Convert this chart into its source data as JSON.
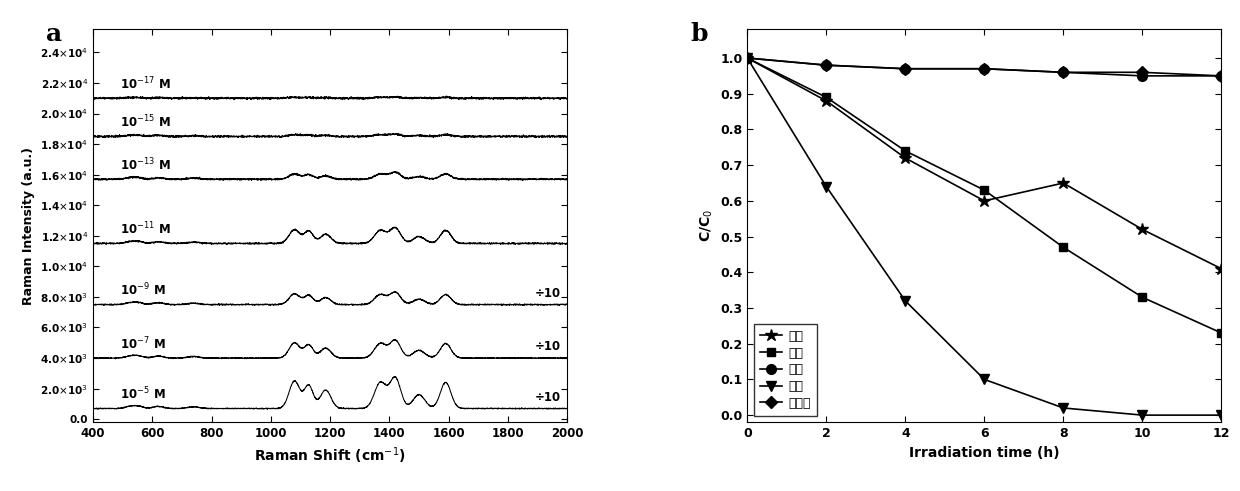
{
  "panel_a": {
    "xlabel": "Raman Shift (cm$^{-1}$)",
    "ylabel": "Raman Intensity (a.u.)",
    "xlim": [
      400,
      2000
    ],
    "ylim": [
      -200,
      25500
    ],
    "yticks": [
      0,
      2000,
      4000,
      6000,
      8000,
      10000,
      12000,
      14000,
      16000,
      18000,
      20000,
      22000,
      24000
    ],
    "ytick_labels": [
      "0.0",
      "2.0×10³",
      "4.0×10³",
      "6.0×10³",
      "8.0×10³",
      "1.0×10⁴",
      "1.2×10⁴",
      "1.4×10⁴",
      "1.6×10⁴",
      "1.8×10⁴",
      "2.0×10⁴",
      "2.2×10⁴",
      "2.4×10⁴"
    ],
    "xticks": [
      400,
      600,
      800,
      1000,
      1200,
      1400,
      1600,
      1800,
      2000
    ],
    "concentrations": [
      "10$^{-17}$ M",
      "10$^{-15}$ M",
      "10$^{-13}$ M",
      "10$^{-11}$ M",
      "10$^{-9}$ M",
      "10$^{-7}$ M",
      "10$^{-5}$ M"
    ],
    "offsets": [
      21000,
      18500,
      15700,
      11500,
      7500,
      4000,
      700
    ],
    "peak_positions": [
      528,
      556,
      620,
      740,
      1080,
      1128,
      1185,
      1370,
      1420,
      1500,
      1590
    ],
    "widths": [
      18,
      15,
      18,
      20,
      18,
      15,
      18,
      20,
      18,
      20,
      18
    ],
    "heights_e17": [
      40,
      30,
      35,
      25,
      60,
      50,
      40,
      60,
      80,
      30,
      60
    ],
    "heights_e15": [
      80,
      60,
      70,
      50,
      120,
      100,
      80,
      120,
      160,
      60,
      120
    ],
    "heights_e13": [
      100,
      80,
      90,
      70,
      350,
      300,
      220,
      350,
      450,
      180,
      350
    ],
    "heights_e11": [
      120,
      90,
      110,
      80,
      900,
      800,
      600,
      850,
      1000,
      450,
      850
    ],
    "heights_e9": [
      130,
      100,
      120,
      90,
      700,
      600,
      450,
      650,
      800,
      350,
      650
    ],
    "heights_e7": [
      140,
      110,
      130,
      100,
      1000,
      850,
      650,
      950,
      1150,
      500,
      950
    ],
    "heights_e5": [
      150,
      120,
      140,
      110,
      1800,
      1500,
      1200,
      1700,
      2000,
      900,
      1700
    ],
    "noise_levels": [
      30,
      28,
      25,
      22,
      18,
      16,
      14
    ],
    "seeds": [
      1,
      2,
      3,
      4,
      5,
      6,
      7
    ],
    "div10_labels": [
      null,
      null,
      null,
      null,
      "÷10",
      "÷10",
      "÷10"
    ]
  },
  "panel_b": {
    "xlabel": "Irradiation time (h)",
    "ylabel": "C/C$_0$",
    "xlim": [
      0,
      12
    ],
    "ylim": [
      -0.02,
      1.08
    ],
    "xticks": [
      0,
      2,
      4,
      6,
      8,
      10,
      12
    ],
    "yticks": [
      0.0,
      0.1,
      0.2,
      0.3,
      0.4,
      0.5,
      0.6,
      0.7,
      0.8,
      0.9,
      1.0
    ],
    "series_order": [
      "绿光",
      "紫光",
      "蓝光",
      "红光",
      "自降解"
    ],
    "series": {
      "绿光": {
        "x": [
          0,
          2,
          4,
          6,
          8,
          10,
          12
        ],
        "y": [
          1.0,
          0.88,
          0.72,
          0.6,
          0.65,
          0.52,
          0.41
        ],
        "marker": "*",
        "ms": 9
      },
      "紫光": {
        "x": [
          0,
          2,
          4,
          6,
          8,
          10,
          12
        ],
        "y": [
          1.0,
          0.89,
          0.74,
          0.63,
          0.47,
          0.33,
          0.23
        ],
        "marker": "s",
        "ms": 6
      },
      "蓝光": {
        "x": [
          0,
          2,
          4,
          6,
          8,
          10,
          12
        ],
        "y": [
          1.0,
          0.98,
          0.97,
          0.97,
          0.96,
          0.95,
          0.95
        ],
        "marker": "o",
        "ms": 7
      },
      "红光": {
        "x": [
          0,
          2,
          4,
          6,
          8,
          10,
          12
        ],
        "y": [
          1.0,
          0.64,
          0.32,
          0.1,
          0.02,
          0.0,
          0.0
        ],
        "marker": "v",
        "ms": 7
      },
      "自降解": {
        "x": [
          0,
          2,
          4,
          6,
          8,
          10,
          12
        ],
        "y": [
          1.0,
          0.98,
          0.97,
          0.97,
          0.96,
          0.96,
          0.95
        ],
        "marker": "D",
        "ms": 6
      }
    }
  }
}
